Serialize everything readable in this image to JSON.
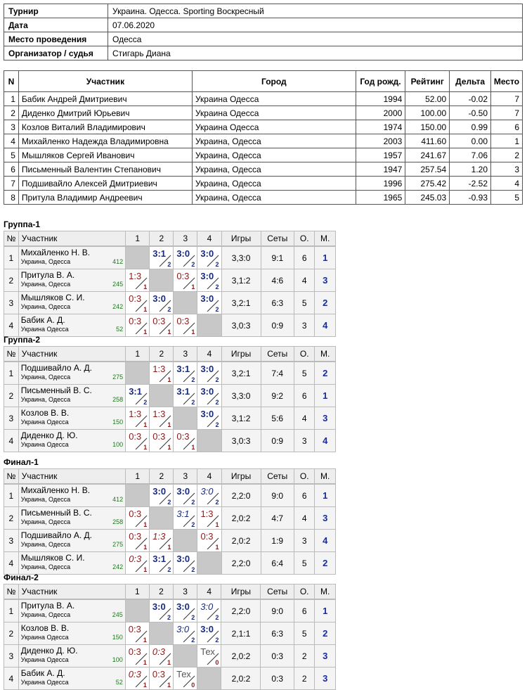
{
  "info": [
    {
      "key": "Турнир",
      "value": "Украина. Одесса. Sporting Воскресный"
    },
    {
      "key": "Дата",
      "value": "07.06.2020"
    },
    {
      "key": "Место проведения",
      "value": "Одесса"
    },
    {
      "key": "Организатор / судья",
      "value": "Стигарь Диана"
    }
  ],
  "participants": {
    "headers": [
      "N",
      "Участник",
      "Город",
      "Год рожд.",
      "Рейтинг",
      "Дельта",
      "Место"
    ],
    "rows": [
      [
        "1",
        "Бабик Андрей Дмитриевич",
        "Украина Одесса",
        "1994",
        "52.00",
        "-0.02",
        "7"
      ],
      [
        "2",
        "Диденко Дмитрий Юрьевич",
        "Украина Одесса",
        "2000",
        "100.00",
        "-0.50",
        "7"
      ],
      [
        "3",
        "Козлов Виталий Владимирович",
        "Украина Одесса",
        "1974",
        "150.00",
        "0.99",
        "6"
      ],
      [
        "4",
        "Михайленко Надежда Владимировна",
        "Украина, Одесса",
        "2003",
        "411.60",
        "0.00",
        "1"
      ],
      [
        "5",
        "Мышляков Сергей Иванович",
        "Украина, Одесса",
        "1957",
        "241.67",
        "7.06",
        "2"
      ],
      [
        "6",
        "Письменный Валентин Степанович",
        "Украина, Одесса",
        "1947",
        "257.54",
        "1.20",
        "3"
      ],
      [
        "7",
        "Подшивайло Алексей Дмитриевич",
        "Украина, Одесса",
        "1996",
        "275.42",
        "-2.52",
        "4"
      ],
      [
        "8",
        "Притула Владимир Андреевич",
        "Украина, Одесса",
        "1965",
        "245.03",
        "-0.93",
        "5"
      ]
    ]
  },
  "grid_headers": [
    "№",
    "Участник",
    "1",
    "2",
    "3",
    "4",
    "Игры",
    "Сеты",
    "О.",
    "М."
  ],
  "groups": [
    {
      "title": "Группа-1",
      "rows": [
        {
          "n": "1",
          "name": "Михайленко Н. В.",
          "city": "Украина, Одесса",
          "rating": "412",
          "cells": [
            null,
            {
              "s": "3:1",
              "p": "2",
              "t": "w"
            },
            {
              "s": "3:0",
              "p": "2",
              "t": "w"
            },
            {
              "s": "3:0",
              "p": "2",
              "t": "w"
            }
          ],
          "games": "3,3:0",
          "sets": "9:1",
          "pts": "6",
          "place": "1"
        },
        {
          "n": "2",
          "name": "Притула В. А.",
          "city": "Украина, Одесса",
          "rating": "245",
          "cells": [
            {
              "s": "1:3",
              "p": "1",
              "t": "l"
            },
            null,
            {
              "s": "0:3",
              "p": "1",
              "t": "l"
            },
            {
              "s": "3:0",
              "p": "2",
              "t": "w"
            }
          ],
          "games": "3,1:2",
          "sets": "4:6",
          "pts": "4",
          "place": "3"
        },
        {
          "n": "3",
          "name": "Мышляков С. И.",
          "city": "Украина, Одесса",
          "rating": "242",
          "cells": [
            {
              "s": "0:3",
              "p": "1",
              "t": "l"
            },
            {
              "s": "3:0",
              "p": "2",
              "t": "w"
            },
            null,
            {
              "s": "3:0",
              "p": "2",
              "t": "w"
            }
          ],
          "games": "3,2:1",
          "sets": "6:3",
          "pts": "5",
          "place": "2"
        },
        {
          "n": "4",
          "name": "Бабик А. Д.",
          "city": "Украина Одесса",
          "rating": "52",
          "cells": [
            {
              "s": "0:3",
              "p": "1",
              "t": "l"
            },
            {
              "s": "0:3",
              "p": "1",
              "t": "l"
            },
            {
              "s": "0:3",
              "p": "1",
              "t": "l"
            },
            null
          ],
          "games": "3,0:3",
          "sets": "0:9",
          "pts": "3",
          "place": "4"
        }
      ]
    },
    {
      "title": "Группа-2",
      "rows": [
        {
          "n": "1",
          "name": "Подшивайло А. Д.",
          "city": "Украина, Одесса",
          "rating": "275",
          "cells": [
            null,
            {
              "s": "1:3",
              "p": "1",
              "t": "l"
            },
            {
              "s": "3:1",
              "p": "2",
              "t": "w"
            },
            {
              "s": "3:0",
              "p": "2",
              "t": "w"
            }
          ],
          "games": "3,2:1",
          "sets": "7:4",
          "pts": "5",
          "place": "2"
        },
        {
          "n": "2",
          "name": "Письменный В. С.",
          "city": "Украина, Одесса",
          "rating": "258",
          "cells": [
            {
              "s": "3:1",
              "p": "2",
              "t": "w"
            },
            null,
            {
              "s": "3:1",
              "p": "2",
              "t": "w"
            },
            {
              "s": "3:0",
              "p": "2",
              "t": "w"
            }
          ],
          "games": "3,3:0",
          "sets": "9:2",
          "pts": "6",
          "place": "1"
        },
        {
          "n": "3",
          "name": "Козлов В. В.",
          "city": "Украина Одесса",
          "rating": "150",
          "cells": [
            {
              "s": "1:3",
              "p": "1",
              "t": "l"
            },
            {
              "s": "1:3",
              "p": "1",
              "t": "l"
            },
            null,
            {
              "s": "3:0",
              "p": "2",
              "t": "w"
            }
          ],
          "games": "3,1:2",
          "sets": "5:6",
          "pts": "4",
          "place": "3"
        },
        {
          "n": "4",
          "name": "Диденко Д. Ю.",
          "city": "Украина Одесса",
          "rating": "100",
          "cells": [
            {
              "s": "0:3",
              "p": "1",
              "t": "l"
            },
            {
              "s": "0:3",
              "p": "1",
              "t": "l"
            },
            {
              "s": "0:3",
              "p": "1",
              "t": "l"
            },
            null
          ],
          "games": "3,0:3",
          "sets": "0:9",
          "pts": "3",
          "place": "4"
        }
      ]
    },
    {
      "title": "Финал-1",
      "rows": [
        {
          "n": "1",
          "name": "Михайленко Н. В.",
          "city": "Украина, Одесса",
          "rating": "412",
          "cells": [
            null,
            {
              "s": "3:0",
              "p": "2",
              "t": "w"
            },
            {
              "s": "3:0",
              "p": "2",
              "t": "w"
            },
            {
              "s": "3:0",
              "p": "2",
              "t": "wi"
            }
          ],
          "games": "2,2:0",
          "sets": "9:0",
          "pts": "6",
          "place": "1"
        },
        {
          "n": "2",
          "name": "Письменный В. С.",
          "city": "Украина, Одесса",
          "rating": "258",
          "cells": [
            {
              "s": "0:3",
              "p": "1",
              "t": "l"
            },
            null,
            {
              "s": "3:1",
              "p": "2",
              "t": "wi"
            },
            {
              "s": "1:3",
              "p": "1",
              "t": "l"
            }
          ],
          "games": "2,0:2",
          "sets": "4:7",
          "pts": "4",
          "place": "3"
        },
        {
          "n": "3",
          "name": "Подшивайло А. Д.",
          "city": "Украина, Одесса",
          "rating": "275",
          "cells": [
            {
              "s": "0:3",
              "p": "1",
              "t": "l"
            },
            {
              "s": "1:3",
              "p": "1",
              "t": "li"
            },
            null,
            {
              "s": "0:3",
              "p": "1",
              "t": "l"
            }
          ],
          "games": "2,0:2",
          "sets": "1:9",
          "pts": "3",
          "place": "4"
        },
        {
          "n": "4",
          "name": "Мышляков С. И.",
          "city": "Украина, Одесса",
          "rating": "242",
          "cells": [
            {
              "s": "0:3",
              "p": "1",
              "t": "li"
            },
            {
              "s": "3:1",
              "p": "2",
              "t": "w"
            },
            {
              "s": "3:0",
              "p": "2",
              "t": "w"
            },
            null
          ],
          "games": "2,2:0",
          "sets": "6:4",
          "pts": "5",
          "place": "2"
        }
      ]
    },
    {
      "title": "Финал-2",
      "rows": [
        {
          "n": "1",
          "name": "Притула В. А.",
          "city": "Украина, Одесса",
          "rating": "245",
          "cells": [
            null,
            {
              "s": "3:0",
              "p": "2",
              "t": "w"
            },
            {
              "s": "3:0",
              "p": "2",
              "t": "w"
            },
            {
              "s": "3:0",
              "p": "2",
              "t": "wi"
            }
          ],
          "games": "2,2:0",
          "sets": "9:0",
          "pts": "6",
          "place": "1"
        },
        {
          "n": "2",
          "name": "Козлов В. В.",
          "city": "Украина Одесса",
          "rating": "150",
          "cells": [
            {
              "s": "0:3",
              "p": "1",
              "t": "l"
            },
            null,
            {
              "s": "3:0",
              "p": "2",
              "t": "wi"
            },
            {
              "s": "3:0",
              "p": "2",
              "t": "w"
            }
          ],
          "games": "2,1:1",
          "sets": "6:3",
          "pts": "5",
          "place": "2"
        },
        {
          "n": "3",
          "name": "Диденко Д. Ю.",
          "city": "Украина Одесса",
          "rating": "100",
          "cells": [
            {
              "s": "0:3",
              "p": "1",
              "t": "l"
            },
            {
              "s": "0:3",
              "p": "1",
              "t": "li"
            },
            null,
            {
              "s": "Тех",
              "p": "0",
              "t": "t"
            }
          ],
          "games": "2,0:2",
          "sets": "0:3",
          "pts": "2",
          "place": "3"
        },
        {
          "n": "4",
          "name": "Бабик А. Д.",
          "city": "Украина Одесса",
          "rating": "52",
          "cells": [
            {
              "s": "0:3",
              "p": "1",
              "t": "li"
            },
            {
              "s": "0:3",
              "p": "1",
              "t": "l"
            },
            {
              "s": "Тех",
              "p": "0",
              "t": "t"
            },
            null
          ],
          "games": "2,0:2",
          "sets": "0:3",
          "pts": "2",
          "place": "3"
        }
      ]
    }
  ]
}
